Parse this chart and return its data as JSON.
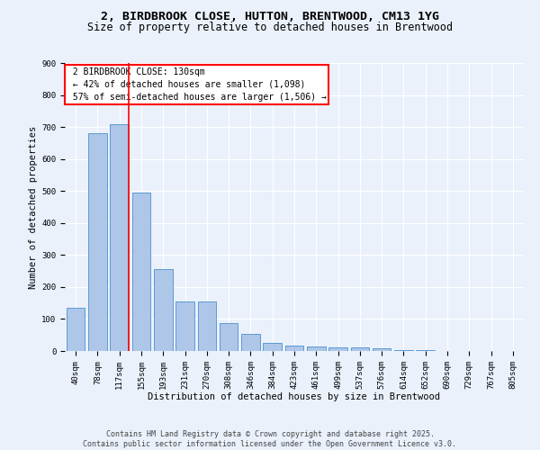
{
  "title_line1": "2, BIRDBROOK CLOSE, HUTTON, BRENTWOOD, CM13 1YG",
  "title_line2": "Size of property relative to detached houses in Brentwood",
  "xlabel": "Distribution of detached houses by size in Brentwood",
  "ylabel": "Number of detached properties",
  "bar_color": "#aec6e8",
  "bar_edge_color": "#5b9bd5",
  "categories": [
    "40sqm",
    "78sqm",
    "117sqm",
    "155sqm",
    "193sqm",
    "231sqm",
    "270sqm",
    "308sqm",
    "346sqm",
    "384sqm",
    "423sqm",
    "461sqm",
    "499sqm",
    "537sqm",
    "576sqm",
    "614sqm",
    "652sqm",
    "690sqm",
    "729sqm",
    "767sqm",
    "805sqm"
  ],
  "values": [
    135,
    680,
    710,
    495,
    255,
    155,
    155,
    88,
    53,
    25,
    18,
    14,
    10,
    10,
    8,
    4,
    2,
    1,
    1,
    1,
    1
  ],
  "property_label": "2 BIRDBROOK CLOSE: 130sqm",
  "pct_smaller": "42% of detached houses are smaller (1,098)",
  "pct_larger": "57% of semi-detached houses are larger (1,506)",
  "vline_bin_index": 2,
  "ylim": [
    0,
    900
  ],
  "yticks": [
    0,
    100,
    200,
    300,
    400,
    500,
    600,
    700,
    800,
    900
  ],
  "footer_line1": "Contains HM Land Registry data © Crown copyright and database right 2025.",
  "footer_line2": "Contains public sector information licensed under the Open Government Licence v3.0.",
  "background_color": "#eaf1fb",
  "grid_color": "#ffffff",
  "title_fontsize": 9.5,
  "subtitle_fontsize": 8.5,
  "axis_label_fontsize": 7.5,
  "tick_fontsize": 6.5,
  "annotation_fontsize": 7,
  "footer_fontsize": 6
}
